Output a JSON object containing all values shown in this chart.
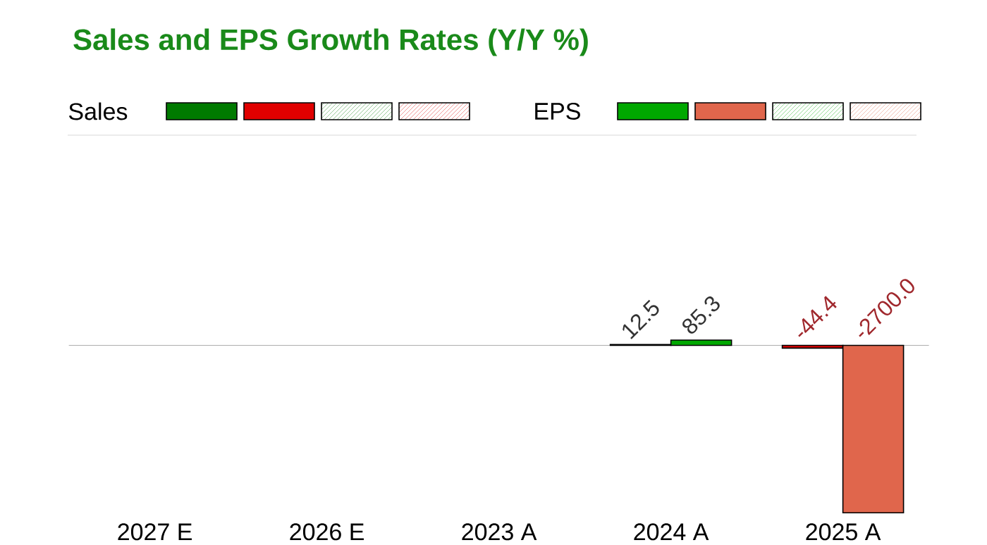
{
  "chart_data": {
    "type": "bar",
    "title": "Sales and EPS Growth Rates (Y/Y %)",
    "categories": [
      "2027 E",
      "2026 E",
      "2023 A",
      "2024 A",
      "2025 A"
    ],
    "series": [
      {
        "name": "Sales",
        "values": [
          null,
          null,
          null,
          12.5,
          -44.4
        ],
        "colors": [
          null,
          null,
          null,
          "#007a00",
          "#e00000"
        ],
        "value_labels": [
          null,
          null,
          null,
          "12.5",
          "-44.4"
        ]
      },
      {
        "name": "EPS",
        "values": [
          null,
          null,
          null,
          85.3,
          -2700.0
        ],
        "colors": [
          null,
          null,
          null,
          "#00a800",
          "#e0664c"
        ],
        "value_labels": [
          null,
          null,
          null,
          "85.3",
          "-2700.0"
        ]
      }
    ],
    "legend": "top left"
  }
}
